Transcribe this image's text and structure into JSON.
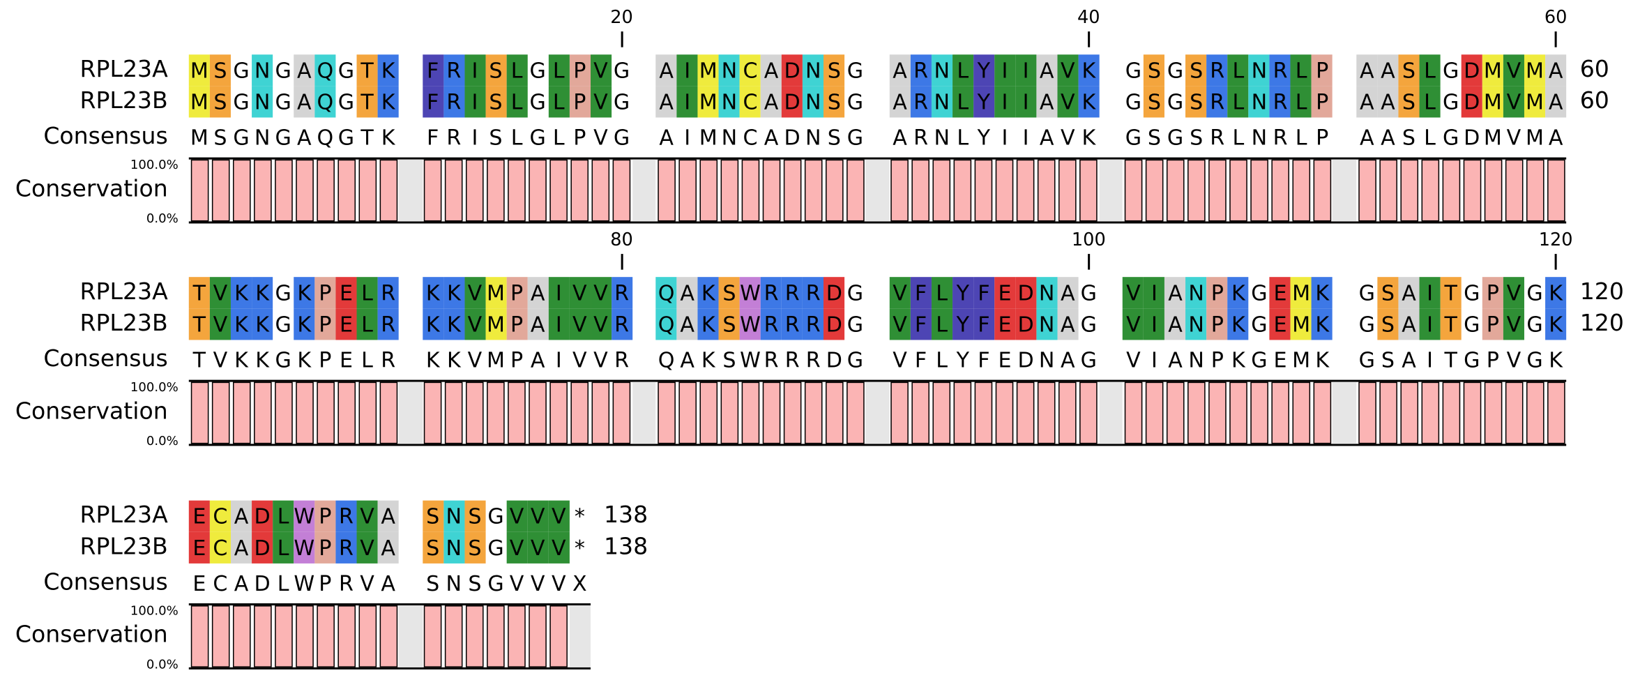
{
  "labels": {
    "consensus": "Consensus",
    "conservation": "Conservation",
    "conservation_max": "100.0%",
    "conservation_min": "0.0%"
  },
  "residue_colors": {
    "A": "#d4d4d4",
    "C": "#efeb3d",
    "M": "#efeb3d",
    "D": "#e33a3a",
    "E": "#e33a3a",
    "F": "#4d45b4",
    "Y": "#4d45b4",
    "I": "#2f8f35",
    "L": "#2f8f35",
    "V": "#2f8f35",
    "K": "#3d78e6",
    "R": "#3d78e6",
    "N": "#3fd3d3",
    "Q": "#3fd3d3",
    "S": "#f4a53d",
    "T": "#f4a53d",
    "P": "#e2a89a",
    "W": "#c37fd6"
  },
  "conservation_bar_color": "#fbb4b4",
  "spacer_color": "#e6e6e6",
  "blocks": [
    {
      "position_markers": [
        "20",
        "40",
        "60"
      ],
      "rows": [
        {
          "name": "RPL23A",
          "groups": [
            [
              "M",
              "S",
              "G",
              "N",
              "G",
              "A",
              "Q",
              "G",
              "T",
              "K"
            ],
            [
              "F",
              "R",
              "I",
              "S",
              "L",
              "G",
              "L",
              "P",
              "V",
              "G"
            ],
            [
              "A",
              "I",
              "M",
              "N",
              "C",
              "A",
              "D",
              "N",
              "S",
              "G"
            ],
            [
              "A",
              "R",
              "N",
              "L",
              "Y",
              "I",
              "I",
              "A",
              "V",
              "K"
            ],
            [
              "G",
              "S",
              "G",
              "S",
              "R",
              "L",
              "N",
              "R",
              "L",
              "P"
            ],
            [
              "A",
              "A",
              "S",
              "L",
              "G",
              "D",
              "M",
              "V",
              "M",
              "A"
            ]
          ],
          "end_number": "60"
        },
        {
          "name": "RPL23B",
          "groups": [
            [
              "M",
              "S",
              "G",
              "N",
              "G",
              "A",
              "Q",
              "G",
              "T",
              "K"
            ],
            [
              "F",
              "R",
              "I",
              "S",
              "L",
              "G",
              "L",
              "P",
              "V",
              "G"
            ],
            [
              "A",
              "I",
              "M",
              "N",
              "C",
              "A",
              "D",
              "N",
              "S",
              "G"
            ],
            [
              "A",
              "R",
              "N",
              "L",
              "Y",
              "I",
              "I",
              "A",
              "V",
              "K"
            ],
            [
              "G",
              "S",
              "G",
              "S",
              "R",
              "L",
              "N",
              "R",
              "L",
              "P"
            ],
            [
              "A",
              "A",
              "S",
              "L",
              "G",
              "D",
              "M",
              "V",
              "M",
              "A"
            ]
          ],
          "end_number": "60"
        }
      ],
      "consensus": [
        [
          "M",
          "S",
          "G",
          "N",
          "G",
          "A",
          "Q",
          "G",
          "T",
          "K"
        ],
        [
          "F",
          "R",
          "I",
          "S",
          "L",
          "G",
          "L",
          "P",
          "V",
          "G"
        ],
        [
          "A",
          "I",
          "M",
          "N",
          "C",
          "A",
          "D",
          "N",
          "S",
          "G"
        ],
        [
          "A",
          "R",
          "N",
          "L",
          "Y",
          "I",
          "I",
          "A",
          "V",
          "K"
        ],
        [
          "G",
          "S",
          "G",
          "S",
          "R",
          "L",
          "N",
          "R",
          "L",
          "P"
        ],
        [
          "A",
          "A",
          "S",
          "L",
          "G",
          "D",
          "M",
          "V",
          "M",
          "A"
        ]
      ],
      "conservation": [
        [
          100,
          100,
          100,
          100,
          100,
          100,
          100,
          100,
          100,
          100
        ],
        [
          100,
          100,
          100,
          100,
          100,
          100,
          100,
          100,
          100,
          100
        ],
        [
          100,
          100,
          100,
          100,
          100,
          100,
          100,
          100,
          100,
          100
        ],
        [
          100,
          100,
          100,
          100,
          100,
          100,
          100,
          100,
          100,
          100
        ],
        [
          100,
          100,
          100,
          100,
          100,
          100,
          100,
          100,
          100,
          100
        ],
        [
          100,
          100,
          100,
          100,
          100,
          100,
          100,
          100,
          100,
          100
        ]
      ]
    },
    {
      "position_markers": [
        "80",
        "100",
        "120"
      ],
      "rows": [
        {
          "name": "RPL23A",
          "groups": [
            [
              "T",
              "V",
              "K",
              "K",
              "G",
              "K",
              "P",
              "E",
              "L",
              "R"
            ],
            [
              "K",
              "K",
              "V",
              "M",
              "P",
              "A",
              "I",
              "V",
              "V",
              "R"
            ],
            [
              "Q",
              "A",
              "K",
              "S",
              "W",
              "R",
              "R",
              "R",
              "D",
              "G"
            ],
            [
              "V",
              "F",
              "L",
              "Y",
              "F",
              "E",
              "D",
              "N",
              "A",
              "G"
            ],
            [
              "V",
              "I",
              "A",
              "N",
              "P",
              "K",
              "G",
              "E",
              "M",
              "K"
            ],
            [
              "G",
              "S",
              "A",
              "I",
              "T",
              "G",
              "P",
              "V",
              "G",
              "K"
            ]
          ],
          "end_number": "120"
        },
        {
          "name": "RPL23B",
          "groups": [
            [
              "T",
              "V",
              "K",
              "K",
              "G",
              "K",
              "P",
              "E",
              "L",
              "R"
            ],
            [
              "K",
              "K",
              "V",
              "M",
              "P",
              "A",
              "I",
              "V",
              "V",
              "R"
            ],
            [
              "Q",
              "A",
              "K",
              "S",
              "W",
              "R",
              "R",
              "R",
              "D",
              "G"
            ],
            [
              "V",
              "F",
              "L",
              "Y",
              "F",
              "E",
              "D",
              "N",
              "A",
              "G"
            ],
            [
              "V",
              "I",
              "A",
              "N",
              "P",
              "K",
              "G",
              "E",
              "M",
              "K"
            ],
            [
              "G",
              "S",
              "A",
              "I",
              "T",
              "G",
              "P",
              "V",
              "G",
              "K"
            ]
          ],
          "end_number": "120"
        }
      ],
      "consensus": [
        [
          "T",
          "V",
          "K",
          "K",
          "G",
          "K",
          "P",
          "E",
          "L",
          "R"
        ],
        [
          "K",
          "K",
          "V",
          "M",
          "P",
          "A",
          "I",
          "V",
          "V",
          "R"
        ],
        [
          "Q",
          "A",
          "K",
          "S",
          "W",
          "R",
          "R",
          "R",
          "D",
          "G"
        ],
        [
          "V",
          "F",
          "L",
          "Y",
          "F",
          "E",
          "D",
          "N",
          "A",
          "G"
        ],
        [
          "V",
          "I",
          "A",
          "N",
          "P",
          "K",
          "G",
          "E",
          "M",
          "K"
        ],
        [
          "G",
          "S",
          "A",
          "I",
          "T",
          "G",
          "P",
          "V",
          "G",
          "K"
        ]
      ],
      "conservation": [
        [
          100,
          100,
          100,
          100,
          100,
          100,
          100,
          100,
          100,
          100
        ],
        [
          100,
          100,
          100,
          100,
          100,
          100,
          100,
          100,
          100,
          100
        ],
        [
          100,
          100,
          100,
          100,
          100,
          100,
          100,
          100,
          100,
          100
        ],
        [
          100,
          100,
          100,
          100,
          100,
          100,
          100,
          100,
          100,
          100
        ],
        [
          100,
          100,
          100,
          100,
          100,
          100,
          100,
          100,
          100,
          100
        ],
        [
          100,
          100,
          100,
          100,
          100,
          100,
          100,
          100,
          100,
          100
        ]
      ]
    },
    {
      "position_markers": [],
      "rows": [
        {
          "name": "RPL23A",
          "groups": [
            [
              "E",
              "C",
              "A",
              "D",
              "L",
              "W",
              "P",
              "R",
              "V",
              "A"
            ],
            [
              "S",
              "N",
              "S",
              "G",
              "V",
              "V",
              "V",
              "*"
            ]
          ],
          "end_number": "138"
        },
        {
          "name": "RPL23B",
          "groups": [
            [
              "E",
              "C",
              "A",
              "D",
              "L",
              "W",
              "P",
              "R",
              "V",
              "A"
            ],
            [
              "S",
              "N",
              "S",
              "G",
              "V",
              "V",
              "V",
              "*"
            ]
          ],
          "end_number": "138"
        }
      ],
      "consensus": [
        [
          "E",
          "C",
          "A",
          "D",
          "L",
          "W",
          "P",
          "R",
          "V",
          "A"
        ],
        [
          "S",
          "N",
          "S",
          "G",
          "V",
          "V",
          "V",
          "X"
        ]
      ],
      "conservation": [
        [
          100,
          100,
          100,
          100,
          100,
          100,
          100,
          100,
          100,
          100
        ],
        [
          100,
          100,
          100,
          100,
          100,
          100,
          100,
          null
        ]
      ]
    }
  ]
}
